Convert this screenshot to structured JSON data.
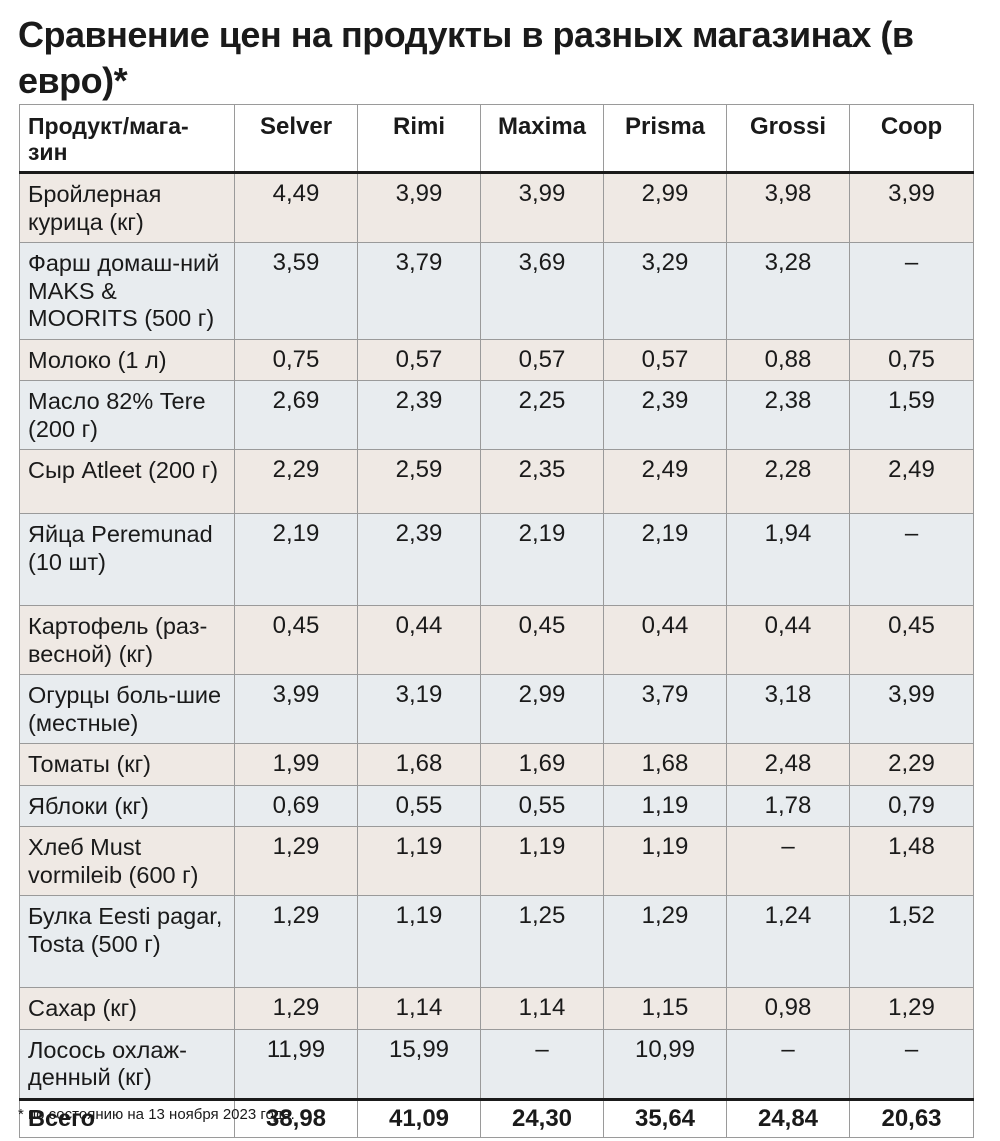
{
  "title": "Сравнение цен на продукты в разных магазинах (в евро)*",
  "table": {
    "header_product": "Продукт/мага-зин",
    "stores": [
      "Selver",
      "Rimi",
      "Maxima",
      "Prisma",
      "Grossi",
      "Coop"
    ],
    "rows": [
      {
        "product": "Бройлерная курица (кг)",
        "prices": [
          "4,49",
          "3,99",
          "3,99",
          "2,99",
          "3,98",
          "3,99"
        ]
      },
      {
        "product": "Фарш домаш-ний MAKS & MOORITS (500 г)",
        "prices": [
          "3,59",
          "3,79",
          "3,69",
          "3,29",
          "3,28",
          "–"
        ]
      },
      {
        "product": "Молоко (1 л)",
        "prices": [
          "0,75",
          "0,57",
          "0,57",
          "0,57",
          "0,88",
          "0,75"
        ]
      },
      {
        "product": "Масло 82% Tere (200 г)",
        "prices": [
          "2,69",
          "2,39",
          "2,25",
          "2,39",
          "2,38",
          "1,59"
        ]
      },
      {
        "product": "Сыр Atleet (200 г)",
        "prices": [
          "2,29",
          "2,59",
          "2,35",
          "2,49",
          "2,28",
          "2,49"
        ]
      },
      {
        "product": "Яйца Peremunad (10 шт)",
        "prices": [
          "2,19",
          "2,39",
          "2,19",
          "2,19",
          "1,94",
          "–"
        ]
      },
      {
        "product": "Картофель (раз-весной) (кг)",
        "prices": [
          "0,45",
          "0,44",
          "0,45",
          "0,44",
          "0,44",
          "0,45"
        ]
      },
      {
        "product": "Огурцы боль-шие (местные)",
        "prices": [
          "3,99",
          "3,19",
          "2,99",
          "3,79",
          "3,18",
          "3,99"
        ]
      },
      {
        "product": "Томаты (кг)",
        "prices": [
          "1,99",
          "1,68",
          "1,69",
          "1,68",
          "2,48",
          "2,29"
        ]
      },
      {
        "product": "Яблоки (кг)",
        "prices": [
          "0,69",
          "0,55",
          "0,55",
          "1,19",
          "1,78",
          "0,79"
        ]
      },
      {
        "product": "Хлеб Must vormileib (600 г)",
        "prices": [
          "1,29",
          "1,19",
          "1,19",
          "1,19",
          "–",
          "1,48"
        ]
      },
      {
        "product": "Булка Eesti pagar, Tosta (500 г)",
        "prices": [
          "1,29",
          "1,19",
          "1,25",
          "1,29",
          "1,24",
          "1,52"
        ]
      },
      {
        "product": "Сахар (кг)",
        "prices": [
          "1,29",
          "1,14",
          "1,14",
          "1,15",
          "0,98",
          "1,29"
        ]
      },
      {
        "product": "Лосось охлаж-денный (кг)",
        "prices": [
          "11,99",
          "15,99",
          "–",
          "10,99",
          "–",
          "–"
        ]
      }
    ],
    "total_label": "Всего",
    "totals": [
      "38,98",
      "41,09",
      "24,30",
      "35,64",
      "24,84",
      "20,63"
    ]
  },
  "footnote": "* по состоянию на 13 ноября 2023 года.",
  "colors": {
    "row_odd": "#efe9e4",
    "row_even": "#e8ecef",
    "grid": "#9a9a9a"
  }
}
